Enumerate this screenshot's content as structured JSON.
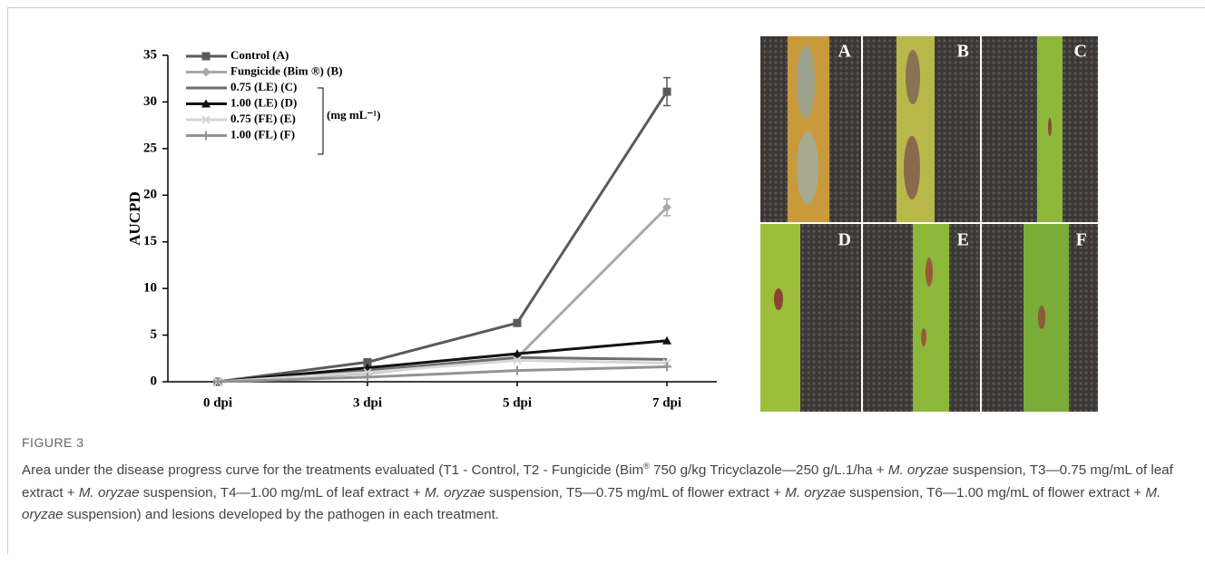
{
  "chart_data": {
    "type": "line",
    "ylabel": "AUCPD",
    "categories": [
      "0 dpi",
      "3 dpi",
      "5 dpi",
      "7 dpi"
    ],
    "ylim": [
      0,
      35
    ],
    "yticks": [
      0,
      5,
      10,
      15,
      20,
      25,
      30,
      35
    ],
    "series": [
      {
        "name": "Control (A)",
        "color": "#5a5a5a",
        "marker": "square",
        "values": [
          0,
          2.1,
          6.3,
          31.1
        ],
        "errors": [
          null,
          0.3,
          0.3,
          1.5
        ]
      },
      {
        "name": "Fungicide (Bim ®) (B)",
        "color": "#a9a9a9",
        "marker": "diamond",
        "values": [
          0,
          0.9,
          2.6,
          18.7
        ],
        "errors": [
          null,
          0.2,
          0.3,
          0.9
        ]
      },
      {
        "name": "0.75 (LE) (C)",
        "color": "#6e6e6e",
        "marker": "none",
        "values": [
          0,
          1.2,
          2.6,
          2.4
        ]
      },
      {
        "name": "1.00 (LE) (D)",
        "color": "#111111",
        "marker": "triangle",
        "values": [
          0,
          1.5,
          3.0,
          4.4
        ]
      },
      {
        "name": "0.75 (FE) (E)",
        "color": "#d6d6d6",
        "marker": "cross",
        "values": [
          0,
          1.0,
          2.3,
          2.0
        ]
      },
      {
        "name": "1.00 (FL) (F)",
        "color": "#939393",
        "marker": "plus",
        "values": [
          0,
          0.5,
          1.2,
          1.6
        ]
      }
    ],
    "legend_note": "(mg mL⁻¹)"
  },
  "figure": {
    "panel_labels": [
      "A",
      "B",
      "C",
      "D",
      "E",
      "F"
    ],
    "caption_label": "FIGURE 3",
    "caption": [
      {
        "text": "Area under the disease progress curve for the treatments evaluated (T1 - Control, T2 - Fungicide (Bim",
        "style": "normal"
      },
      {
        "text": "®",
        "style": "superscript"
      },
      {
        "text": " 750 g/kg Tricyclazole—250 g/L.1/ha + ",
        "style": "normal"
      },
      {
        "text": "M. oryzae",
        "style": "italic"
      },
      {
        "text": " suspension, T3—0.75 mg/mL of leaf extract + ",
        "style": "normal"
      },
      {
        "text": "M. oryzae",
        "style": "italic"
      },
      {
        "text": " suspension, T4—1.00 mg/mL of leaf extract + ",
        "style": "normal"
      },
      {
        "text": "M. oryzae",
        "style": "italic"
      },
      {
        "text": " suspension, T5—0.75 mg/mL of flower extract + ",
        "style": "normal"
      },
      {
        "text": "M. oryzae",
        "style": "italic"
      },
      {
        "text": " suspension, T6—1.00 mg/mL of flower extract + ",
        "style": "normal"
      },
      {
        "text": "M. oryzae",
        "style": "italic"
      },
      {
        "text": " suspension) and lesions developed by the pathogen in each treatment.",
        "style": "normal"
      }
    ]
  }
}
